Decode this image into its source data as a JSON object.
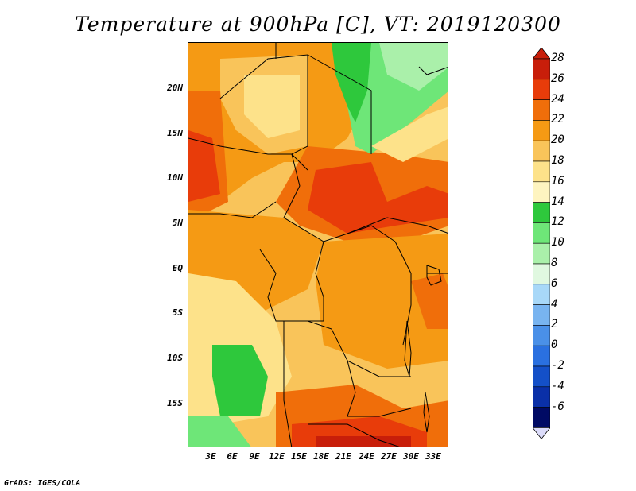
{
  "title": "Temperature at 900hPa [C], VT: 2019120300",
  "footer": "GrADS: IGES/COLA",
  "y_axis_labels": [
    "20N",
    "15N",
    "10N",
    "5N",
    "EQ",
    "5S",
    "10S",
    "15S"
  ],
  "x_axis_labels": [
    "3E",
    "6E",
    "9E",
    "12E",
    "15E",
    "18E",
    "21E",
    "24E",
    "27E",
    "30E",
    "33E"
  ],
  "colorbar": {
    "levels": [
      "28",
      "26",
      "24",
      "22",
      "20",
      "18",
      "16",
      "14",
      "12",
      "10",
      "8",
      "6",
      "4",
      "2",
      "0",
      "-2",
      "-4",
      "-6"
    ],
    "colors": [
      "#c81e0a",
      "#e83c0a",
      "#f06e0a",
      "#f59a14",
      "#f9c45a",
      "#fde28a",
      "#fef4c0",
      "#2ec83c",
      "#6ee678",
      "#aaf0aa",
      "#e0f8e0",
      "#a8d8f8",
      "#78b4f0",
      "#4a90e8",
      "#2a70e0",
      "#1450c8",
      "#0a30a8",
      "#000a64"
    ],
    "over_color": "#c81e0a",
    "under_color": "#dcdcfa"
  }
}
